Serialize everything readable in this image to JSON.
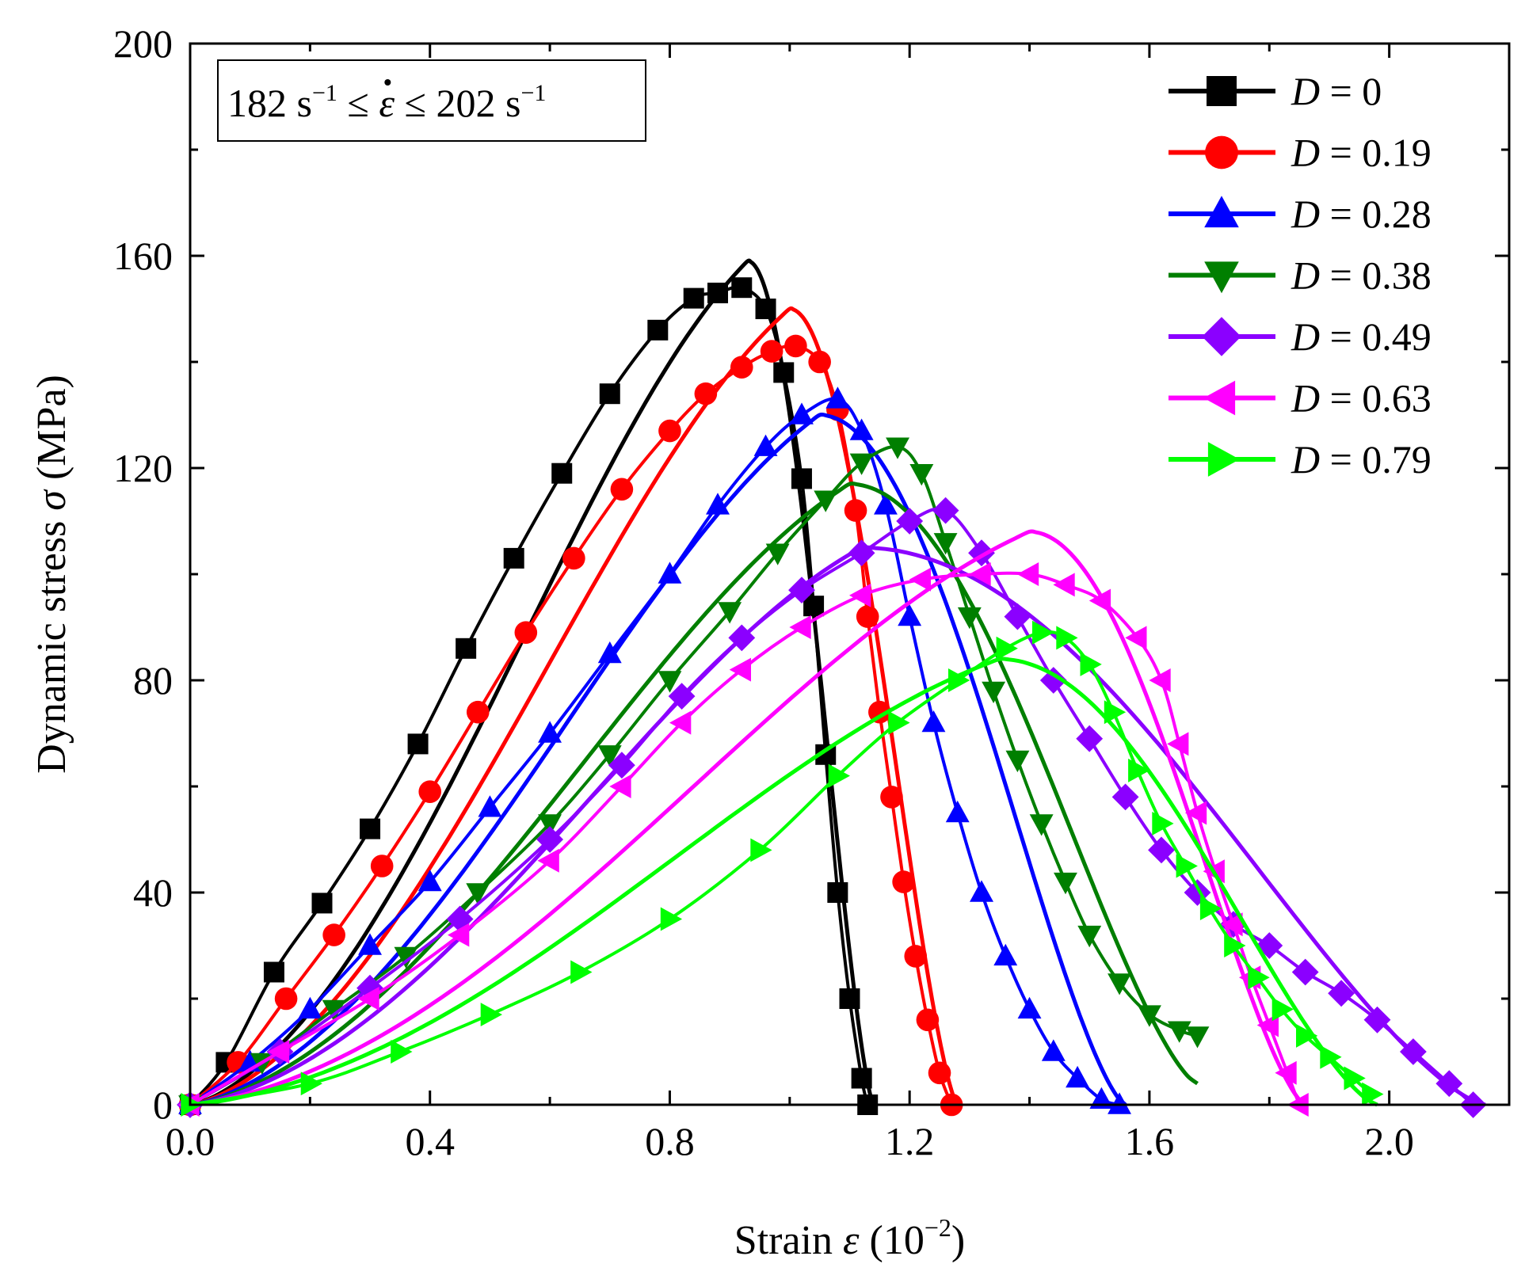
{
  "chart_data": {
    "type": "line",
    "title": "",
    "xlabel": {
      "prefix": "Strain ",
      "symbol": "ε",
      "unit": " (10",
      "exp": "−2",
      "close": ")"
    },
    "ylabel": {
      "prefix": "Dynamic stress ",
      "symbol": "σ",
      "unit": " (MPa)"
    },
    "xlim": [
      0,
      2.2
    ],
    "ylim": [
      0,
      200
    ],
    "xticks": [
      "0.0",
      "0.4",
      "0.8",
      "1.2",
      "1.6",
      "2.0"
    ],
    "xtick_values": [
      0,
      0.4,
      0.8,
      1.2,
      1.6,
      2.0
    ],
    "yticks": [
      "0",
      "40",
      "80",
      "120",
      "160",
      "200"
    ],
    "ytick_values": [
      0,
      40,
      80,
      120,
      160,
      200
    ],
    "grid": false,
    "legend_position": "top-right",
    "annotation": {
      "left": "182 s",
      "exp1": "−1",
      "mid": " ≤ ",
      "symbol": "ε",
      "mid2": " ≤ 202 s",
      "exp2": "−1"
    },
    "series": [
      {
        "name": "D = 0",
        "label_symbol": "D",
        "label_value": " = 0",
        "color": "#000000",
        "marker": "square",
        "x": [
          0,
          0.06,
          0.14,
          0.22,
          0.3,
          0.38,
          0.46,
          0.54,
          0.62,
          0.7,
          0.78,
          0.84,
          0.88,
          0.92,
          0.96,
          0.99,
          1.02,
          1.04,
          1.06,
          1.08,
          1.1,
          1.12,
          1.13
        ],
        "y": [
          0,
          8,
          25,
          38,
          52,
          68,
          86,
          103,
          119,
          134,
          146,
          152,
          153,
          154,
          150,
          138,
          118,
          94,
          66,
          40,
          20,
          5,
          0
        ],
        "fit_peak": [
          0.93,
          159
        ],
        "fit_end": 1.14
      },
      {
        "name": "D = 0.19",
        "label_symbol": "D",
        "label_value": " = 0.19",
        "color": "#ff0000",
        "marker": "circle",
        "x": [
          0,
          0.08,
          0.16,
          0.24,
          0.32,
          0.4,
          0.48,
          0.56,
          0.64,
          0.72,
          0.8,
          0.86,
          0.92,
          0.97,
          1.01,
          1.05,
          1.08,
          1.11,
          1.13,
          1.15,
          1.17,
          1.19,
          1.21,
          1.23,
          1.25,
          1.27
        ],
        "y": [
          0,
          8,
          20,
          32,
          45,
          59,
          74,
          89,
          103,
          116,
          127,
          134,
          139,
          142,
          143,
          140,
          131,
          112,
          92,
          74,
          58,
          42,
          28,
          16,
          6,
          0
        ],
        "fit_peak": [
          1.0,
          150
        ],
        "fit_end": 1.28
      },
      {
        "name": "D = 0.28",
        "label_symbol": "D",
        "label_value": " = 0.28",
        "color": "#0000ff",
        "marker": "triangle-up",
        "x": [
          0,
          0.1,
          0.2,
          0.3,
          0.4,
          0.5,
          0.6,
          0.7,
          0.8,
          0.88,
          0.96,
          1.02,
          1.08,
          1.12,
          1.16,
          1.2,
          1.24,
          1.28,
          1.32,
          1.36,
          1.4,
          1.44,
          1.48,
          1.52,
          1.55
        ],
        "y": [
          0,
          8,
          18,
          30,
          42,
          56,
          70,
          85,
          100,
          113,
          124,
          130,
          133,
          127,
          113,
          92,
          72,
          55,
          40,
          28,
          18,
          10,
          5,
          1,
          0
        ],
        "fit_peak": [
          1.05,
          130
        ],
        "fit_end": 1.56
      },
      {
        "name": "D = 0.38",
        "label_symbol": "D",
        "label_value": " = 0.38",
        "color": "#007f00",
        "marker": "triangle-down",
        "x": [
          0,
          0.12,
          0.24,
          0.36,
          0.48,
          0.6,
          0.7,
          0.8,
          0.9,
          0.98,
          1.06,
          1.12,
          1.18,
          1.22,
          1.26,
          1.3,
          1.34,
          1.38,
          1.42,
          1.46,
          1.5,
          1.55,
          1.6,
          1.65,
          1.68
        ],
        "y": [
          0,
          8,
          18,
          28,
          40,
          53,
          66,
          80,
          93,
          104,
          114,
          121,
          124,
          119,
          106,
          92,
          78,
          65,
          53,
          42,
          32,
          23,
          17,
          14,
          13
        ],
        "fit_peak": [
          1.1,
          117
        ],
        "fit_end": 1.68,
        "fit_end_y": 4
      },
      {
        "name": "D = 0.49",
        "label_symbol": "D",
        "label_value": " = 0.49",
        "color": "#8b00ff",
        "marker": "diamond",
        "x": [
          0,
          0.15,
          0.3,
          0.45,
          0.6,
          0.72,
          0.82,
          0.92,
          1.02,
          1.12,
          1.2,
          1.26,
          1.32,
          1.38,
          1.44,
          1.5,
          1.56,
          1.62,
          1.68,
          1.74,
          1.8,
          1.86,
          1.92,
          1.98,
          2.04,
          2.1,
          2.14
        ],
        "y": [
          0,
          10,
          22,
          35,
          50,
          64,
          77,
          88,
          97,
          104,
          110,
          112,
          104,
          92,
          80,
          69,
          58,
          48,
          40,
          34,
          30,
          25,
          21,
          16,
          10,
          4,
          0
        ],
        "fit_peak": [
          1.12,
          105
        ],
        "fit_end": 2.16
      },
      {
        "name": "D = 0.63",
        "label_symbol": "D",
        "label_value": " = 0.63",
        "color": "#ff00ff",
        "marker": "triangle-left",
        "x": [
          0,
          0.15,
          0.3,
          0.45,
          0.6,
          0.72,
          0.82,
          0.92,
          1.02,
          1.12,
          1.22,
          1.32,
          1.4,
          1.46,
          1.52,
          1.58,
          1.62,
          1.65,
          1.68,
          1.71,
          1.74,
          1.77,
          1.8,
          1.83,
          1.85
        ],
        "y": [
          0,
          10,
          20,
          32,
          46,
          60,
          72,
          82,
          90,
          96,
          99,
          100,
          100,
          98,
          95,
          88,
          80,
          68,
          55,
          44,
          34,
          24,
          15,
          6,
          0
        ],
        "fit_peak": [
          1.4,
          108
        ],
        "fit_end": 1.86
      },
      {
        "name": "D = 0.79",
        "label_symbol": "D",
        "label_value": " = 0.79",
        "color": "#00ff00",
        "marker": "triangle-right",
        "x": [
          0,
          0.2,
          0.35,
          0.5,
          0.65,
          0.8,
          0.95,
          1.08,
          1.18,
          1.28,
          1.36,
          1.42,
          1.46,
          1.5,
          1.54,
          1.58,
          1.62,
          1.66,
          1.7,
          1.74,
          1.78,
          1.82,
          1.86,
          1.9,
          1.94,
          1.97
        ],
        "y": [
          0,
          4,
          10,
          17,
          25,
          35,
          48,
          62,
          72,
          80,
          86,
          89,
          88,
          83,
          74,
          63,
          53,
          45,
          37,
          30,
          24,
          18,
          13,
          9,
          5,
          2
        ],
        "fit_peak": [
          1.35,
          84
        ],
        "fit_end": 1.98
      }
    ]
  }
}
